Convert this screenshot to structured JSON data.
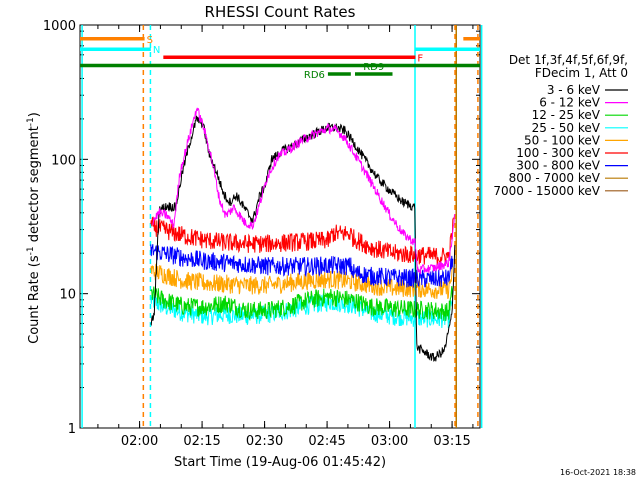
{
  "chart_data": {
    "type": "line",
    "title": "RHESSI Count Rates",
    "xlabel": "Start Time (19-Aug-06 01:45:42)",
    "ylabel_main": "Count Rate (s",
    "ylabel_sup1": "-1",
    "ylabel_mid": " detector segment",
    "ylabel_sup2": "-1",
    "ylabel_end": ")",
    "yscale": "log",
    "ylim": [
      1,
      1000
    ],
    "xlim_minutes": [
      0,
      96
    ],
    "yticks": [
      {
        "value": 1,
        "label": "1"
      },
      {
        "value": 10,
        "label": "10"
      },
      {
        "value": 100,
        "label": "100"
      },
      {
        "value": 1000,
        "label": "1000"
      }
    ],
    "xticks": [
      {
        "minute": 14.3,
        "label": "02:00"
      },
      {
        "minute": 29.3,
        "label": "02:15"
      },
      {
        "minute": 44.3,
        "label": "02:30"
      },
      {
        "minute": 59.3,
        "label": "02:45"
      },
      {
        "minute": 74.3,
        "label": "03:00"
      },
      {
        "minute": 89.3,
        "label": "03:15"
      }
    ],
    "legend_header": [
      "Det 1f,3f,4f,5f,6f,9f,",
      "FDecim 1, Att 0"
    ],
    "series": [
      {
        "name": "3 - 6 keV",
        "color": "#000000",
        "points": [
          [
            17,
            6
          ],
          [
            17.8,
            7
          ],
          [
            19,
            42
          ],
          [
            21,
            45
          ],
          [
            23,
            44
          ],
          [
            24.5,
            78
          ],
          [
            26.2,
            128
          ],
          [
            28,
            200
          ],
          [
            29.5,
            185
          ],
          [
            31,
            110
          ],
          [
            32.8,
            80
          ],
          [
            34.5,
            55
          ],
          [
            36,
            48
          ],
          [
            37.6,
            54
          ],
          [
            39.5,
            43
          ],
          [
            41.5,
            35
          ],
          [
            43,
            52
          ],
          [
            44.5,
            65
          ],
          [
            46,
            100
          ],
          [
            48.5,
            115
          ],
          [
            51.5,
            128
          ],
          [
            54.5,
            146
          ],
          [
            57.5,
            162
          ],
          [
            59.5,
            172
          ],
          [
            61.5,
            172
          ],
          [
            63.5,
            164
          ],
          [
            65.5,
            136
          ],
          [
            68.5,
            98
          ],
          [
            71.5,
            72
          ],
          [
            74.5,
            58
          ],
          [
            77.5,
            48
          ],
          [
            80.4,
            44
          ],
          [
            80.8,
            4
          ],
          [
            85,
            3.3
          ],
          [
            87.5,
            3.8
          ],
          [
            89.3,
            7
          ],
          [
            90,
            24
          ]
        ]
      },
      {
        "name": "6 - 12 keV",
        "color": "#ff00ff",
        "points": [
          [
            17.5,
            35
          ],
          [
            19,
            40
          ],
          [
            21,
            38
          ],
          [
            22.5,
            32
          ],
          [
            24,
            80
          ],
          [
            26,
            140
          ],
          [
            28,
            240
          ],
          [
            29.5,
            180
          ],
          [
            31.5,
            105
          ],
          [
            33.5,
            50
          ],
          [
            35,
            38
          ],
          [
            37,
            44
          ],
          [
            39.5,
            34
          ],
          [
            41.5,
            32
          ],
          [
            43,
            45
          ],
          [
            45,
            75
          ],
          [
            47.5,
            105
          ],
          [
            50.5,
            120
          ],
          [
            53.5,
            140
          ],
          [
            56.5,
            155
          ],
          [
            59.5,
            170
          ],
          [
            61.5,
            165
          ],
          [
            63.5,
            145
          ],
          [
            65.5,
            115
          ],
          [
            68.5,
            80
          ],
          [
            71.5,
            55
          ],
          [
            74.5,
            38
          ],
          [
            77.5,
            28
          ],
          [
            80.4,
            24
          ],
          [
            81,
            15
          ],
          [
            85,
            15.5
          ],
          [
            88.5,
            17
          ],
          [
            90,
            38
          ]
        ]
      },
      {
        "name": "12 - 25 keV",
        "color": "#00d700",
        "points": [
          [
            17,
            10
          ],
          [
            20,
            9
          ],
          [
            25,
            8
          ],
          [
            30,
            8
          ],
          [
            35,
            8.5
          ],
          [
            40,
            7.5
          ],
          [
            45,
            7.5
          ],
          [
            50,
            8
          ],
          [
            55,
            9
          ],
          [
            60,
            9.5
          ],
          [
            65,
            9
          ],
          [
            70,
            8
          ],
          [
            75,
            7.8
          ],
          [
            80,
            7.6
          ],
          [
            85,
            7.5
          ],
          [
            88.5,
            7.3
          ],
          [
            89.5,
            11
          ]
        ]
      },
      {
        "name": "25 - 50 keV",
        "color": "#00ffff",
        "points": [
          [
            17,
            9
          ],
          [
            20,
            8
          ],
          [
            25,
            7.2
          ],
          [
            30,
            6.8
          ],
          [
            35,
            7
          ],
          [
            40,
            6.8
          ],
          [
            45,
            7
          ],
          [
            50,
            7.5
          ],
          [
            55,
            8.2
          ],
          [
            60,
            8.7
          ],
          [
            65,
            8.3
          ],
          [
            70,
            7.2
          ],
          [
            75,
            6.8
          ],
          [
            80,
            6.6
          ],
          [
            85,
            6.5
          ],
          [
            88.5,
            6.5
          ],
          [
            89.5,
            9.5
          ]
        ]
      },
      {
        "name": "50 - 100 keV",
        "color": "#ffa500",
        "points": [
          [
            17,
            15
          ],
          [
            20,
            14
          ],
          [
            25,
            12.5
          ],
          [
            30,
            12
          ],
          [
            35,
            11.8
          ],
          [
            40,
            11.5
          ],
          [
            45,
            11.5
          ],
          [
            50,
            12
          ],
          [
            55,
            12.5
          ],
          [
            60,
            12.8
          ],
          [
            65,
            12.3
          ],
          [
            70,
            11.5
          ],
          [
            75,
            11
          ],
          [
            80,
            11
          ],
          [
            85,
            10.7
          ],
          [
            88.5,
            10.7
          ],
          [
            89.5,
            15
          ]
        ]
      },
      {
        "name": "100 - 300 keV",
        "color": "#ff0000",
        "points": [
          [
            17,
            32
          ],
          [
            20,
            30
          ],
          [
            25,
            27
          ],
          [
            30,
            25
          ],
          [
            35,
            24
          ],
          [
            40,
            23.5
          ],
          [
            45,
            23.5
          ],
          [
            50,
            24
          ],
          [
            55,
            24.5
          ],
          [
            60,
            25
          ],
          [
            60.5,
            28
          ],
          [
            65,
            28
          ],
          [
            65.5,
            26
          ],
          [
            70,
            22
          ],
          [
            75,
            20
          ],
          [
            80,
            19.5
          ],
          [
            85,
            19
          ],
          [
            88.5,
            19
          ],
          [
            89.8,
            36
          ]
        ]
      },
      {
        "name": "300 - 800 keV",
        "color": "#0000ff",
        "points": [
          [
            17,
            21
          ],
          [
            20,
            20
          ],
          [
            25,
            18.5
          ],
          [
            30,
            17.5
          ],
          [
            35,
            17
          ],
          [
            40,
            16.5
          ],
          [
            45,
            16
          ],
          [
            50,
            16
          ],
          [
            55,
            16
          ],
          [
            60,
            16.2
          ],
          [
            65,
            16
          ],
          [
            65.5,
            14.5
          ],
          [
            70,
            13.5
          ],
          [
            75,
            13.2
          ],
          [
            80,
            13
          ],
          [
            85,
            12.8
          ],
          [
            88.5,
            13
          ],
          [
            89.5,
            19
          ]
        ]
      },
      {
        "name": "800 - 7000 keV",
        "color": "#b87900",
        "points": []
      },
      {
        "name": "7000 - 15000 keV",
        "color": "#9b5a1a",
        "points": []
      }
    ],
    "attenuator_bars": [
      {
        "label": "S",
        "color": "#ff8000",
        "spans": [
          [
            0,
            15.5
          ],
          [
            92,
            96
          ]
        ],
        "y": 790
      },
      {
        "label": "N",
        "color": "#00ffff",
        "spans": [
          [
            0,
            17
          ],
          [
            80.5,
            96
          ]
        ],
        "y": 660
      },
      {
        "label": "F",
        "color": "#ff0000",
        "spans": [
          [
            20,
            80.5
          ]
        ],
        "y": 575
      },
      {
        "label": "",
        "color": "#008000",
        "spans": [
          [
            0,
            96
          ]
        ],
        "y": 500
      },
      {
        "label": "RD9",
        "color": "#008000",
        "spans": [
          [
            66,
            75
          ]
        ],
        "y": 432,
        "text_above": true
      },
      {
        "label": "RD6",
        "color": "#008000",
        "spans": [
          [
            59.5,
            65
          ]
        ],
        "y": 432,
        "text_left": true
      }
    ],
    "vlines": [
      {
        "minute": 0.5,
        "color": "#00ffff",
        "style": "solid"
      },
      {
        "minute": 15.2,
        "color": "#ff8000",
        "style": "dashed"
      },
      {
        "minute": 16.9,
        "color": "#00ffff",
        "style": "dashed"
      },
      {
        "minute": 80.4,
        "color": "#00ffff",
        "style": "solid"
      },
      {
        "minute": 90.3,
        "color": "#b87900",
        "style": "solid"
      },
      {
        "minute": 90.0,
        "color": "#ff8000",
        "style": "dashed"
      },
      {
        "minute": 96.4,
        "color": "#00ffff",
        "style": "solid"
      },
      {
        "minute": 95.5,
        "color": "#ff8000",
        "style": "dashed"
      }
    ],
    "timestamp": "16-Oct-2021 18:38"
  }
}
